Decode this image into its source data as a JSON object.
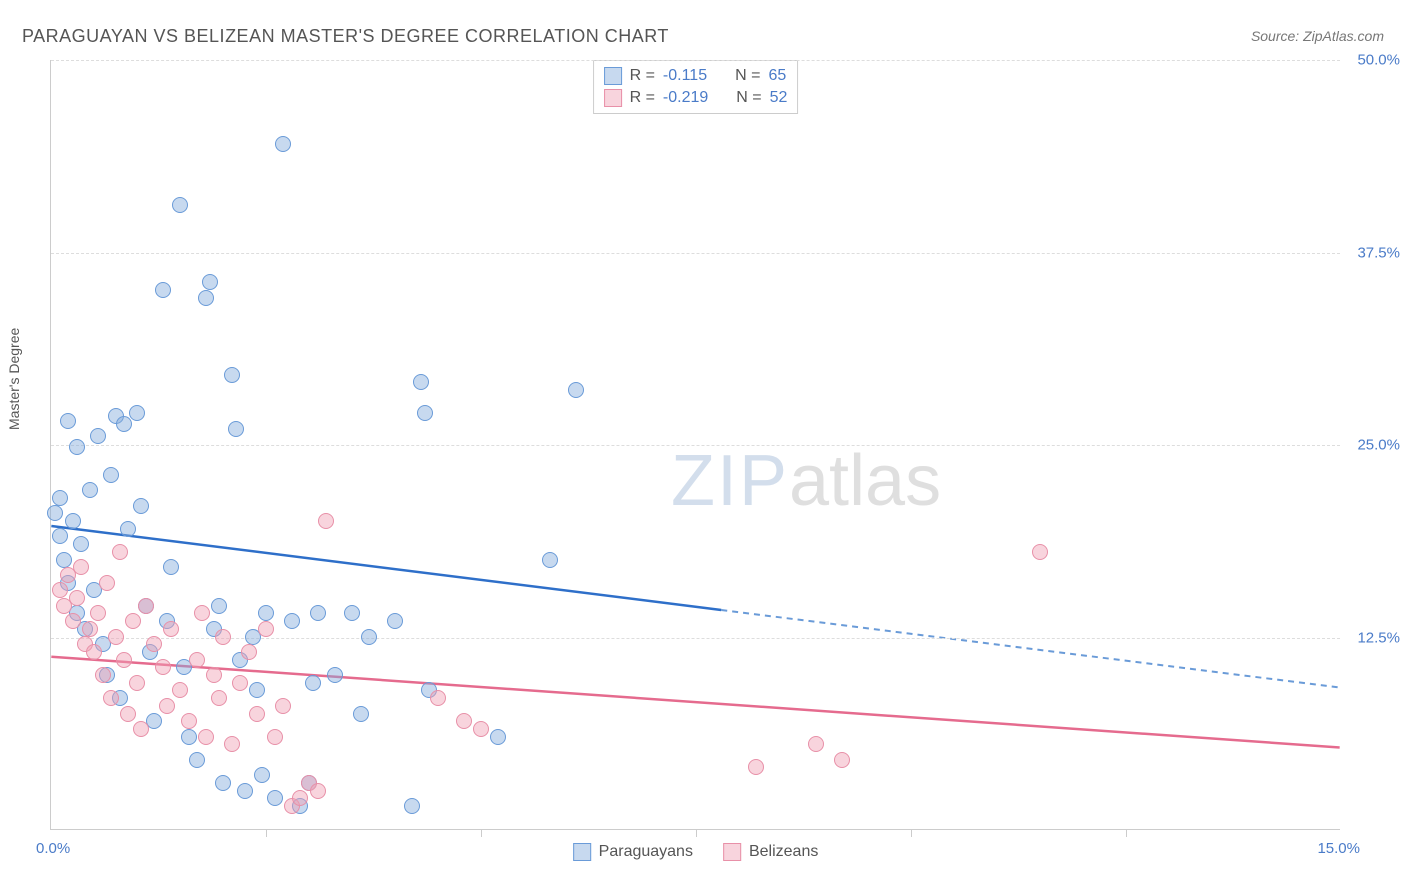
{
  "title": "PARAGUAYAN VS BELIZEAN MASTER'S DEGREE CORRELATION CHART",
  "source_label": "Source: ZipAtlas.com",
  "watermark": {
    "part1": "ZIP",
    "part2": "atlas"
  },
  "chart": {
    "type": "scatter",
    "y_axis_label": "Master's Degree",
    "xlim": [
      0,
      15
    ],
    "ylim": [
      0,
      50
    ],
    "x_tick_step": 2.5,
    "y_ticks": [
      12.5,
      25.0,
      37.5,
      50.0
    ],
    "y_tick_labels": [
      "12.5%",
      "25.0%",
      "37.5%",
      "50.0%"
    ],
    "x_lim_labels": [
      "0.0%",
      "15.0%"
    ],
    "background_color": "#ffffff",
    "grid_color": "#dddddd",
    "axis_color": "#cccccc",
    "tick_label_color": "#4a7bc8",
    "marker_size": 16,
    "series": [
      {
        "name": "Paraguayans",
        "label": "Paraguayans",
        "fill_color": "rgba(130,170,220,0.45)",
        "stroke_color": "#6a9bd8",
        "R": "-0.115",
        "N": "65",
        "trend": {
          "y_start": 19.7,
          "y_end": 9.2,
          "solid_until_x": 7.8,
          "solid_color": "#2e6fc9",
          "dash_color": "#6a9bd8",
          "width": 2.5
        },
        "points": [
          [
            0.05,
            20.5
          ],
          [
            0.1,
            21.5
          ],
          [
            0.1,
            19.0
          ],
          [
            0.15,
            17.5
          ],
          [
            0.2,
            26.5
          ],
          [
            0.2,
            16.0
          ],
          [
            0.25,
            20.0
          ],
          [
            0.3,
            24.8
          ],
          [
            0.3,
            14.0
          ],
          [
            0.35,
            18.5
          ],
          [
            0.4,
            13.0
          ],
          [
            0.45,
            22.0
          ],
          [
            0.5,
            15.5
          ],
          [
            0.55,
            25.5
          ],
          [
            0.6,
            12.0
          ],
          [
            0.65,
            10.0
          ],
          [
            0.7,
            23.0
          ],
          [
            0.75,
            26.8
          ],
          [
            0.8,
            8.5
          ],
          [
            0.85,
            26.3
          ],
          [
            0.9,
            19.5
          ],
          [
            1.0,
            27.0
          ],
          [
            1.05,
            21.0
          ],
          [
            1.1,
            14.5
          ],
          [
            1.15,
            11.5
          ],
          [
            1.2,
            7.0
          ],
          [
            1.3,
            35.0
          ],
          [
            1.35,
            13.5
          ],
          [
            1.4,
            17.0
          ],
          [
            1.5,
            40.5
          ],
          [
            1.55,
            10.5
          ],
          [
            1.6,
            6.0
          ],
          [
            1.7,
            4.5
          ],
          [
            1.8,
            34.5
          ],
          [
            1.85,
            35.5
          ],
          [
            1.9,
            13.0
          ],
          [
            1.95,
            14.5
          ],
          [
            2.0,
            3.0
          ],
          [
            2.1,
            29.5
          ],
          [
            2.15,
            26.0
          ],
          [
            2.2,
            11.0
          ],
          [
            2.25,
            2.5
          ],
          [
            2.35,
            12.5
          ],
          [
            2.4,
            9.0
          ],
          [
            2.45,
            3.5
          ],
          [
            2.5,
            14.0
          ],
          [
            2.6,
            2.0
          ],
          [
            2.7,
            44.5
          ],
          [
            2.8,
            13.5
          ],
          [
            2.9,
            1.5
          ],
          [
            3.0,
            3.0
          ],
          [
            3.05,
            9.5
          ],
          [
            3.1,
            14.0
          ],
          [
            3.3,
            10.0
          ],
          [
            3.5,
            14.0
          ],
          [
            3.6,
            7.5
          ],
          [
            3.7,
            12.5
          ],
          [
            4.0,
            13.5
          ],
          [
            4.2,
            1.5
          ],
          [
            4.3,
            29.0
          ],
          [
            4.35,
            27.0
          ],
          [
            4.4,
            9.0
          ],
          [
            5.2,
            6.0
          ],
          [
            5.8,
            17.5
          ],
          [
            6.1,
            28.5
          ]
        ]
      },
      {
        "name": "Belizeans",
        "label": "Belizeans",
        "fill_color": "rgba(240,160,180,0.45)",
        "stroke_color": "#e890a8",
        "R": "-0.219",
        "N": "52",
        "trend": {
          "y_start": 11.2,
          "y_end": 5.3,
          "solid_until_x": 15.0,
          "solid_color": "#e56b8e",
          "dash_color": "#e56b8e",
          "width": 2.5
        },
        "points": [
          [
            0.1,
            15.5
          ],
          [
            0.15,
            14.5
          ],
          [
            0.2,
            16.5
          ],
          [
            0.25,
            13.5
          ],
          [
            0.3,
            15.0
          ],
          [
            0.35,
            17.0
          ],
          [
            0.4,
            12.0
          ],
          [
            0.45,
            13.0
          ],
          [
            0.5,
            11.5
          ],
          [
            0.55,
            14.0
          ],
          [
            0.6,
            10.0
          ],
          [
            0.65,
            16.0
          ],
          [
            0.7,
            8.5
          ],
          [
            0.75,
            12.5
          ],
          [
            0.8,
            18.0
          ],
          [
            0.85,
            11.0
          ],
          [
            0.9,
            7.5
          ],
          [
            0.95,
            13.5
          ],
          [
            1.0,
            9.5
          ],
          [
            1.05,
            6.5
          ],
          [
            1.1,
            14.5
          ],
          [
            1.2,
            12.0
          ],
          [
            1.3,
            10.5
          ],
          [
            1.35,
            8.0
          ],
          [
            1.4,
            13.0
          ],
          [
            1.5,
            9.0
          ],
          [
            1.6,
            7.0
          ],
          [
            1.7,
            11.0
          ],
          [
            1.75,
            14.0
          ],
          [
            1.8,
            6.0
          ],
          [
            1.9,
            10.0
          ],
          [
            1.95,
            8.5
          ],
          [
            2.0,
            12.5
          ],
          [
            2.1,
            5.5
          ],
          [
            2.2,
            9.5
          ],
          [
            2.3,
            11.5
          ],
          [
            2.4,
            7.5
          ],
          [
            2.5,
            13.0
          ],
          [
            2.6,
            6.0
          ],
          [
            2.7,
            8.0
          ],
          [
            2.8,
            1.5
          ],
          [
            2.9,
            2.0
          ],
          [
            3.0,
            3.0
          ],
          [
            3.1,
            2.5
          ],
          [
            3.2,
            20.0
          ],
          [
            4.5,
            8.5
          ],
          [
            4.8,
            7.0
          ],
          [
            5.0,
            6.5
          ],
          [
            8.2,
            4.0
          ],
          [
            8.9,
            5.5
          ],
          [
            9.2,
            4.5
          ],
          [
            11.5,
            18.0
          ]
        ]
      }
    ]
  },
  "legend_top": {
    "rows": [
      {
        "swatch_fill": "rgba(130,170,220,0.45)",
        "swatch_stroke": "#6a9bd8",
        "R_label": "R =",
        "R_val": "-0.115",
        "N_label": "N =",
        "N_val": "65"
      },
      {
        "swatch_fill": "rgba(240,160,180,0.45)",
        "swatch_stroke": "#e890a8",
        "R_label": "R =",
        "R_val": "-0.219",
        "N_label": "N =",
        "N_val": "52"
      }
    ]
  },
  "legend_bottom": {
    "items": [
      {
        "swatch_fill": "rgba(130,170,220,0.45)",
        "swatch_stroke": "#6a9bd8",
        "label": "Paraguayans"
      },
      {
        "swatch_fill": "rgba(240,160,180,0.45)",
        "swatch_stroke": "#e890a8",
        "label": "Belizeans"
      }
    ]
  }
}
